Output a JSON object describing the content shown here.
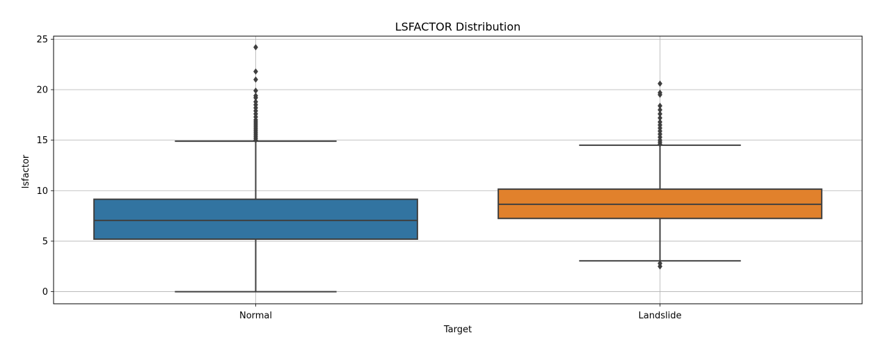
{
  "chart_data": {
    "type": "box",
    "title": "LSFACTOR Distribution",
    "xlabel": "Target",
    "ylabel": "lsfactor",
    "categories": [
      "Normal",
      "Landslide"
    ],
    "ylim": [
      -1.2,
      25.3
    ],
    "yticks": [
      0,
      5,
      10,
      15,
      20,
      25
    ],
    "grid": true,
    "series": [
      {
        "name": "Normal",
        "color": "#3274a1",
        "whisker_low": 0.0,
        "q1": 5.2,
        "median": 7.05,
        "q3": 9.15,
        "whisker_high": 14.9,
        "outliers": [
          15.0,
          15.2,
          15.4,
          15.6,
          15.8,
          16.0,
          16.2,
          16.4,
          16.6,
          16.8,
          17.0,
          17.3,
          17.6,
          17.9,
          18.2,
          18.5,
          18.8,
          19.2,
          19.4,
          19.9,
          21.0,
          21.8,
          24.2
        ]
      },
      {
        "name": "Landslide",
        "color": "#e1812c",
        "whisker_low": 3.05,
        "q1": 7.25,
        "median": 8.65,
        "q3": 10.15,
        "whisker_high": 14.5,
        "outliers": [
          2.5,
          2.8,
          14.6,
          14.8,
          15.0,
          15.3,
          15.6,
          15.9,
          16.2,
          16.5,
          16.8,
          17.2,
          17.6,
          18.0,
          18.4,
          19.5,
          19.7,
          20.6
        ]
      }
    ]
  }
}
